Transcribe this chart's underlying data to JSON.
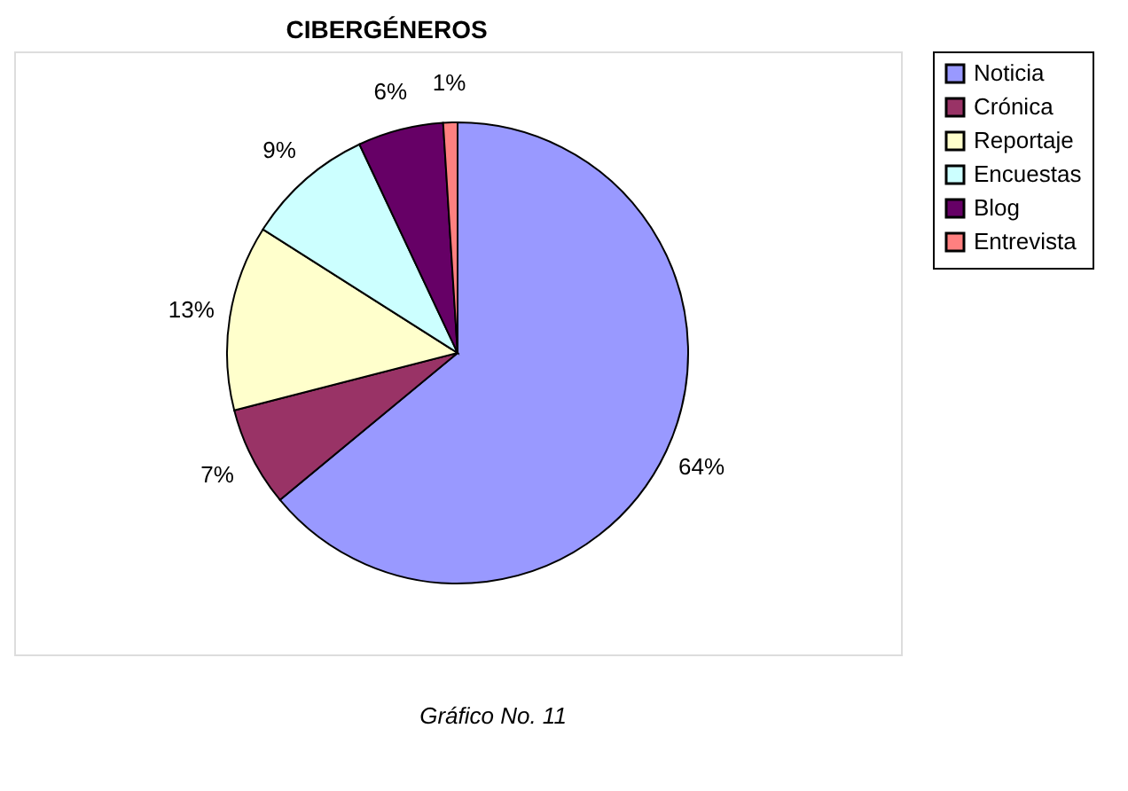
{
  "chart_data": {
    "type": "pie",
    "title": "CIBERGÉNEROS",
    "categories": [
      "Noticia",
      "Crónica",
      "Reportaje",
      "Encuestas",
      "Blog",
      "Entrevista"
    ],
    "values": [
      64,
      7,
      13,
      9,
      6,
      1
    ],
    "colors": [
      "#9999ff",
      "#993366",
      "#ffffcc",
      "#ccffff",
      "#660066",
      "#ff8080"
    ],
    "value_labels": [
      "64%",
      "7%",
      "13%",
      "9%",
      "6%",
      "1%"
    ],
    "legend": "right",
    "annotations": [
      "Gráfico No. 11"
    ]
  }
}
